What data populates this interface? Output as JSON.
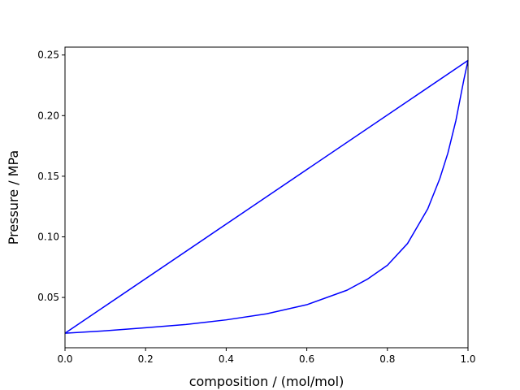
{
  "chart_data": {
    "type": "line",
    "title": "",
    "xlabel": "composition / (mol/mol)",
    "ylabel": "Pressure / MPa",
    "xlim": [
      0.0,
      1.0
    ],
    "ylim": [
      0.0085,
      0.2565
    ],
    "grid": false,
    "line_color": "#0000ff",
    "xticks": [
      {
        "value": 0.0,
        "label": "0.0"
      },
      {
        "value": 0.2,
        "label": "0.2"
      },
      {
        "value": 0.4,
        "label": "0.4"
      },
      {
        "value": 0.6,
        "label": "0.6"
      },
      {
        "value": 0.8,
        "label": "0.8"
      },
      {
        "value": 1.0,
        "label": "1.0"
      }
    ],
    "yticks": [
      {
        "value": 0.05,
        "label": "0.05"
      },
      {
        "value": 0.1,
        "label": "0.10"
      },
      {
        "value": 0.15,
        "label": "0.15"
      },
      {
        "value": 0.2,
        "label": "0.20"
      },
      {
        "value": 0.25,
        "label": "0.25"
      }
    ],
    "series": [
      {
        "curve": "bubble",
        "x": [
          0.0,
          1.0
        ],
        "y": [
          0.0205,
          0.2455
        ]
      },
      {
        "curve": "dew",
        "x": [
          0.0,
          0.1,
          0.2,
          0.3,
          0.4,
          0.5,
          0.6,
          0.7,
          0.75,
          0.8,
          0.85,
          0.9,
          0.93,
          0.95,
          0.97,
          0.98,
          0.99,
          1.0
        ],
        "y": [
          0.0205,
          0.0225,
          0.025,
          0.0277,
          0.0315,
          0.0365,
          0.044,
          0.056,
          0.065,
          0.0765,
          0.0945,
          0.123,
          0.148,
          0.169,
          0.196,
          0.213,
          0.23,
          0.2455
        ]
      }
    ]
  }
}
